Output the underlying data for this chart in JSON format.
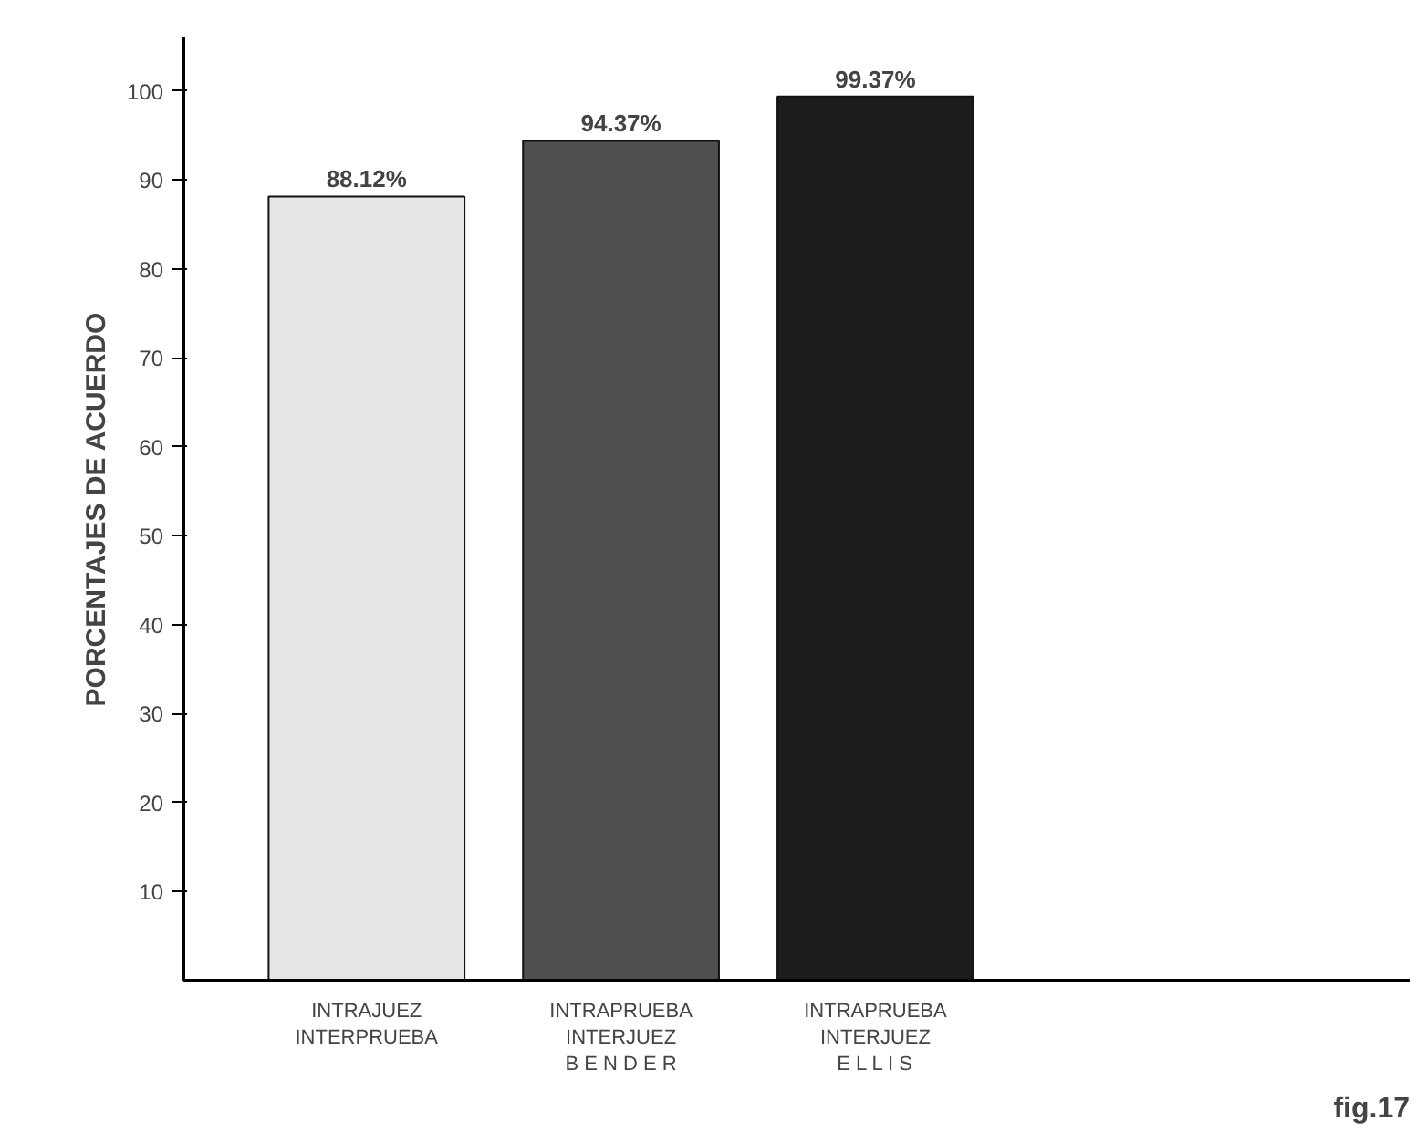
{
  "chart_data": {
    "type": "bar",
    "ylabel": "PORCENTAJES DE ACUERDO",
    "categories": [
      "INTRAJUEZ\nINTERPRUEBA",
      "INTRAPRUEBA\nINTERJUEZ\nB E N D E R",
      "INTRAPRUEBA\nINTERJUEZ\nE L L I S"
    ],
    "values": [
      88.12,
      94.37,
      99.37
    ],
    "colors": [
      "#e6e6e6",
      "#4f4f4f",
      "#1c1c1c"
    ],
    "value_labels": [
      "88.12%",
      "94.37%",
      "99.37%"
    ],
    "ylim": [
      0,
      106
    ],
    "yticks": [
      10,
      20,
      30,
      40,
      50,
      60,
      70,
      80,
      90,
      100
    ],
    "grid": false,
    "annotations": [
      "fig.17"
    ]
  }
}
